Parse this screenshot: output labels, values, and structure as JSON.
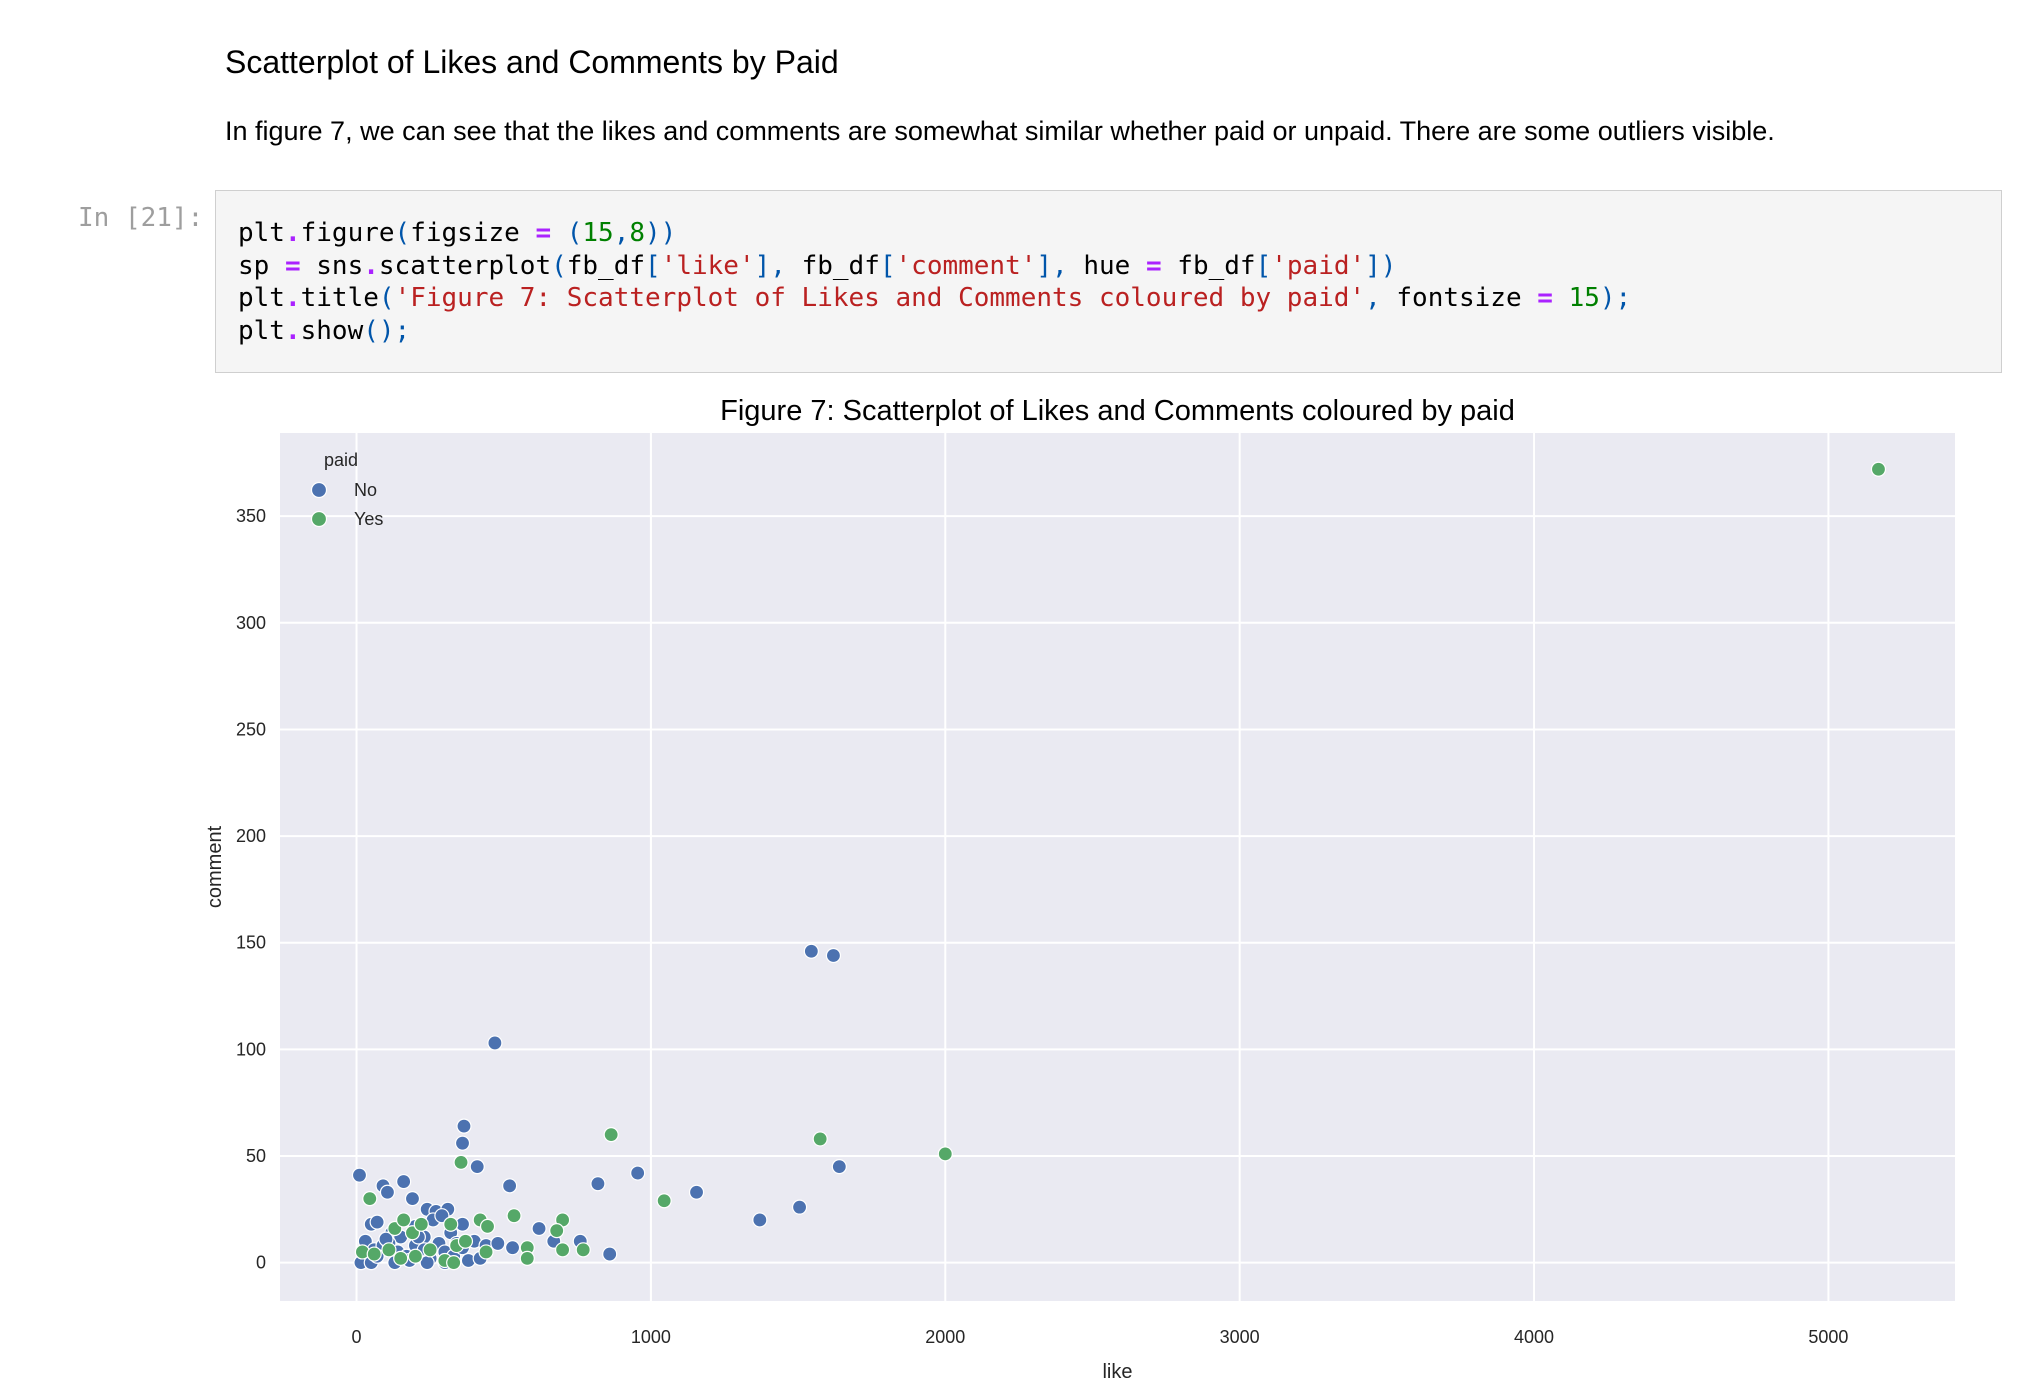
{
  "markdown": {
    "heading": "Scatterplot of Likes and Comments by Paid",
    "paragraph": "In figure 7, we can see that the likes and comments are somewhat similar whether paid or unpaid. There are some outliers visible."
  },
  "cell": {
    "prompt": "In [21]:",
    "code_lines": [
      [
        [
          "n",
          "plt"
        ],
        [
          "o",
          "."
        ],
        [
          "n",
          "figure"
        ],
        [
          "p",
          "("
        ],
        [
          "n",
          "figsize "
        ],
        [
          "o",
          "="
        ],
        [
          "n",
          " "
        ],
        [
          "p",
          "("
        ],
        [
          "d",
          "15"
        ],
        [
          "p",
          ","
        ],
        [
          "d",
          "8"
        ],
        [
          "p",
          "))"
        ]
      ],
      [
        [
          "n",
          "sp "
        ],
        [
          "o",
          "="
        ],
        [
          "n",
          " sns"
        ],
        [
          "o",
          "."
        ],
        [
          "n",
          "scatterplot"
        ],
        [
          "p",
          "("
        ],
        [
          "n",
          "fb_df"
        ],
        [
          "p",
          "["
        ],
        [
          "s",
          "'like'"
        ],
        [
          "p",
          "], "
        ],
        [
          "n",
          "fb_df"
        ],
        [
          "p",
          "["
        ],
        [
          "s",
          "'comment'"
        ],
        [
          "p",
          "], "
        ],
        [
          "n",
          "hue "
        ],
        [
          "o",
          "="
        ],
        [
          "n",
          " fb_df"
        ],
        [
          "p",
          "["
        ],
        [
          "s",
          "'paid'"
        ],
        [
          "p",
          "])"
        ]
      ],
      [
        [
          "n",
          "plt"
        ],
        [
          "o",
          "."
        ],
        [
          "n",
          "title"
        ],
        [
          "p",
          "("
        ],
        [
          "s",
          "'Figure 7: Scatterplot of Likes and Comments coloured by paid'"
        ],
        [
          "p",
          ", "
        ],
        [
          "n",
          "fontsize "
        ],
        [
          "o",
          "="
        ],
        [
          "n",
          " "
        ],
        [
          "d",
          "15"
        ],
        [
          "p",
          ");"
        ]
      ],
      [
        [
          "n",
          "plt"
        ],
        [
          "o",
          "."
        ],
        [
          "n",
          "show"
        ],
        [
          "p",
          "();"
        ]
      ]
    ]
  },
  "chart_data": {
    "type": "scatter",
    "title": "Figure 7: Scatterplot of Likes and Comments coloured by paid",
    "xlabel": "like",
    "ylabel": "comment",
    "xlim": [
      -260,
      5430
    ],
    "ylim": [
      -18,
      389
    ],
    "xticks": [
      0,
      1000,
      2000,
      3000,
      4000,
      5000
    ],
    "yticks": [
      0,
      50,
      100,
      150,
      200,
      250,
      300,
      350
    ],
    "grid": true,
    "legend": {
      "title": "paid",
      "placement": "top-left"
    },
    "colors": {
      "No": "#4c72b0",
      "Yes": "#55a868",
      "background": "#eaeaf2"
    },
    "series": [
      {
        "name": "No",
        "points": [
          [
            10,
            41
          ],
          [
            90,
            36
          ],
          [
            105,
            33
          ],
          [
            160,
            38
          ],
          [
            190,
            30
          ],
          [
            240,
            25
          ],
          [
            270,
            24
          ],
          [
            310,
            25
          ],
          [
            50,
            18
          ],
          [
            70,
            19
          ],
          [
            120,
            14
          ],
          [
            150,
            12
          ],
          [
            200,
            17
          ],
          [
            230,
            12
          ],
          [
            260,
            20
          ],
          [
            290,
            22
          ],
          [
            320,
            14
          ],
          [
            360,
            18
          ],
          [
            400,
            10
          ],
          [
            440,
            8
          ],
          [
            480,
            9
          ],
          [
            530,
            7
          ],
          [
            620,
            16
          ],
          [
            670,
            10
          ],
          [
            760,
            10
          ],
          [
            860,
            4
          ],
          [
            30,
            10
          ],
          [
            60,
            6
          ],
          [
            90,
            8
          ],
          [
            110,
            9
          ],
          [
            140,
            5
          ],
          [
            170,
            3
          ],
          [
            200,
            8
          ],
          [
            230,
            6
          ],
          [
            250,
            2
          ],
          [
            280,
            9
          ],
          [
            300,
            5
          ],
          [
            330,
            3
          ],
          [
            360,
            7
          ],
          [
            380,
            1
          ],
          [
            420,
            2
          ],
          [
            15,
            0
          ],
          [
            50,
            0
          ],
          [
            130,
            0
          ],
          [
            180,
            1
          ],
          [
            240,
            0
          ],
          [
            300,
            0
          ],
          [
            20,
            5
          ],
          [
            70,
            3
          ],
          [
            100,
            11
          ],
          [
            210,
            12
          ],
          [
            340,
            9
          ],
          [
            470,
            103
          ],
          [
            365,
            64
          ],
          [
            360,
            56
          ],
          [
            410,
            45
          ],
          [
            520,
            36
          ],
          [
            820,
            37
          ],
          [
            955,
            42
          ],
          [
            1155,
            33
          ],
          [
            1370,
            20
          ],
          [
            1505,
            26
          ],
          [
            1545,
            146
          ],
          [
            1620,
            144
          ],
          [
            1640,
            45
          ]
        ]
      },
      {
        "name": "Yes",
        "points": [
          [
            45,
            30
          ],
          [
            355,
            47
          ],
          [
            420,
            20
          ],
          [
            445,
            17
          ],
          [
            535,
            22
          ],
          [
            700,
            20
          ],
          [
            680,
            15
          ],
          [
            130,
            16
          ],
          [
            160,
            20
          ],
          [
            190,
            14
          ],
          [
            220,
            18
          ],
          [
            320,
            18
          ],
          [
            20,
            5
          ],
          [
            60,
            4
          ],
          [
            110,
            6
          ],
          [
            150,
            2
          ],
          [
            200,
            3
          ],
          [
            250,
            6
          ],
          [
            300,
            1
          ],
          [
            340,
            8
          ],
          [
            370,
            10
          ],
          [
            440,
            5
          ],
          [
            580,
            7
          ],
          [
            580,
            2
          ],
          [
            700,
            6
          ],
          [
            770,
            6
          ],
          [
            330,
            0
          ],
          [
            865,
            60
          ],
          [
            1045,
            29
          ],
          [
            1575,
            58
          ],
          [
            2000,
            51
          ],
          [
            5170,
            372
          ]
        ]
      }
    ]
  }
}
